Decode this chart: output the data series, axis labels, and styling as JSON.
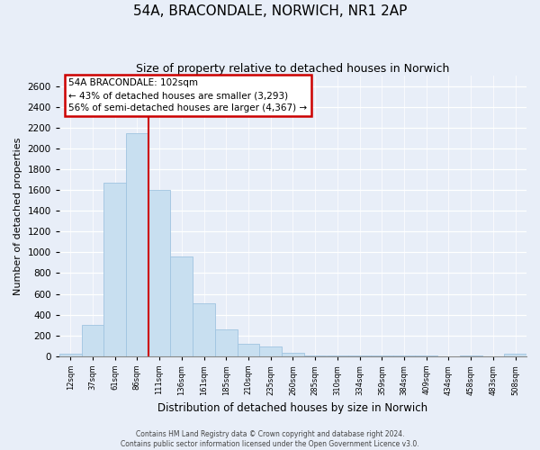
{
  "title": "54A, BRACONDALE, NORWICH, NR1 2AP",
  "subtitle": "Size of property relative to detached houses in Norwich",
  "xlabel": "Distribution of detached houses by size in Norwich",
  "ylabel": "Number of detached properties",
  "bar_color": "#c8dff0",
  "bar_edge_color": "#a0c4e0",
  "bin_labels": [
    "12sqm",
    "37sqm",
    "61sqm",
    "86sqm",
    "111sqm",
    "136sqm",
    "161sqm",
    "185sqm",
    "210sqm",
    "235sqm",
    "260sqm",
    "285sqm",
    "310sqm",
    "334sqm",
    "359sqm",
    "384sqm",
    "409sqm",
    "434sqm",
    "458sqm",
    "483sqm",
    "508sqm"
  ],
  "bar_heights": [
    20,
    300,
    1670,
    2150,
    1600,
    960,
    510,
    255,
    120,
    95,
    35,
    10,
    10,
    5,
    5,
    5,
    5,
    0,
    5,
    0,
    20
  ],
  "ylim": [
    0,
    2700
  ],
  "yticks": [
    0,
    200,
    400,
    600,
    800,
    1000,
    1200,
    1400,
    1600,
    1800,
    2000,
    2200,
    2400,
    2600
  ],
  "property_line_bin": 4,
  "property_line_color": "#cc0000",
  "annotation_title": "54A BRACONDALE: 102sqm",
  "annotation_line1": "← 43% of detached houses are smaller (3,293)",
  "annotation_line2": "56% of semi-detached houses are larger (4,367) →",
  "annotation_box_color": "#ffffff",
  "annotation_box_edge": "#cc0000",
  "footer_line1": "Contains HM Land Registry data © Crown copyright and database right 2024.",
  "footer_line2": "Contains public sector information licensed under the Open Government Licence v3.0.",
  "background_color": "#e8eef8",
  "plot_bg_color": "#e8eef8"
}
